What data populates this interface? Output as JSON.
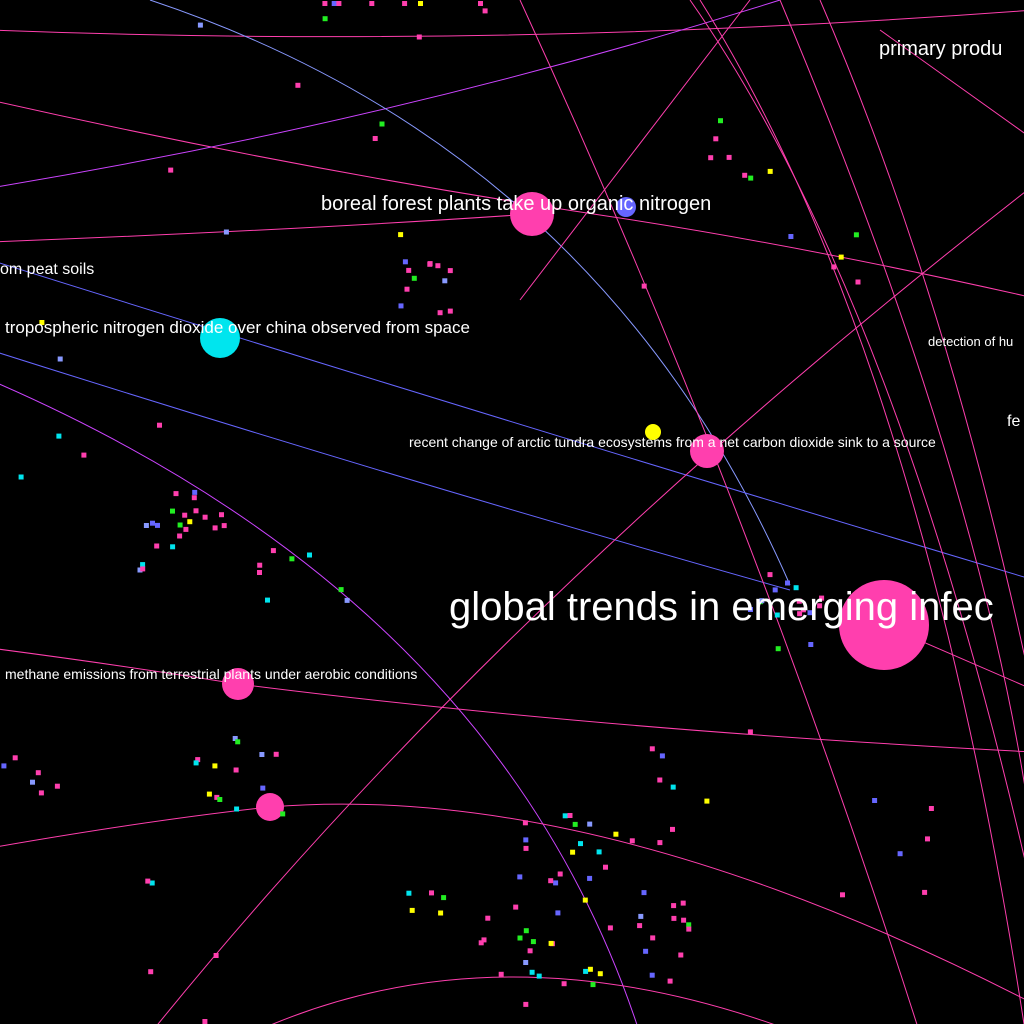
{
  "graph": {
    "background": "#000000",
    "colors": {
      "pink": "#ff3fae",
      "blue": "#6666ff",
      "cyan": "#00e5ee",
      "yellow": "#ffff00",
      "green": "#22ee22",
      "violet": "#cc44ff",
      "lightblue": "#8899ff"
    },
    "labels": [
      {
        "name": "label-global-trends",
        "text": "global trends in emerging infec"
      },
      {
        "name": "label-boreal-forest",
        "text": "boreal forest plants take up organic nitrogen"
      },
      {
        "name": "label-tropospheric-no2",
        "text": "tropospheric nitrogen dioxide over china observed from space"
      },
      {
        "name": "label-arctic-tundra",
        "text": "recent change of arctic tundra ecosystems from a net carbon dioxide sink to a source"
      },
      {
        "name": "label-methane-emissions",
        "text": "methane emissions from terrestrial plants under aerobic conditions"
      },
      {
        "name": "label-peat-soils",
        "text": "om peat soils"
      },
      {
        "name": "label-primary-production",
        "text": "primary produ"
      },
      {
        "name": "label-detection",
        "text": "detection of hu"
      },
      {
        "name": "label-fe",
        "text": "fe"
      }
    ]
  }
}
